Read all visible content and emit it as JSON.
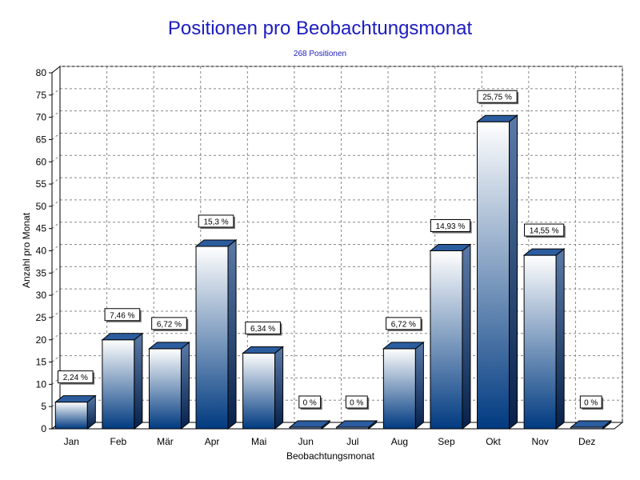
{
  "chart_data": {
    "type": "bar",
    "title": "Positionen pro Beobachtungsmonat",
    "subtitle": "268 Positionen",
    "xlabel": "Beobachtungsmonat",
    "ylabel": "Anzahl pro Monat",
    "ylim": [
      0,
      80
    ],
    "ytick_step": 5,
    "grid": true,
    "categories": [
      "Jan",
      "Feb",
      "Mär",
      "Apr",
      "Mai",
      "Jun",
      "Jul",
      "Aug",
      "Sep",
      "Okt",
      "Nov",
      "Dez"
    ],
    "values": [
      6,
      20,
      18,
      41,
      17,
      0,
      0,
      18,
      40,
      69,
      39,
      0
    ],
    "data_labels": [
      "2,24 %",
      "7,46 %",
      "6,72 %",
      "15,3 %",
      "6,34 %",
      "0 %",
      "0 %",
      "6,72 %",
      "14,93 %",
      "25,75 %",
      "14,55 %",
      "0 %"
    ],
    "colors": {
      "bar_top": "#ffffff",
      "bar_bottom": "#003a80",
      "bar_cap": "#2b5c9e",
      "bar_side": "#0a2a5c",
      "title": "#1c1cc0",
      "grid": "#888888"
    }
  }
}
